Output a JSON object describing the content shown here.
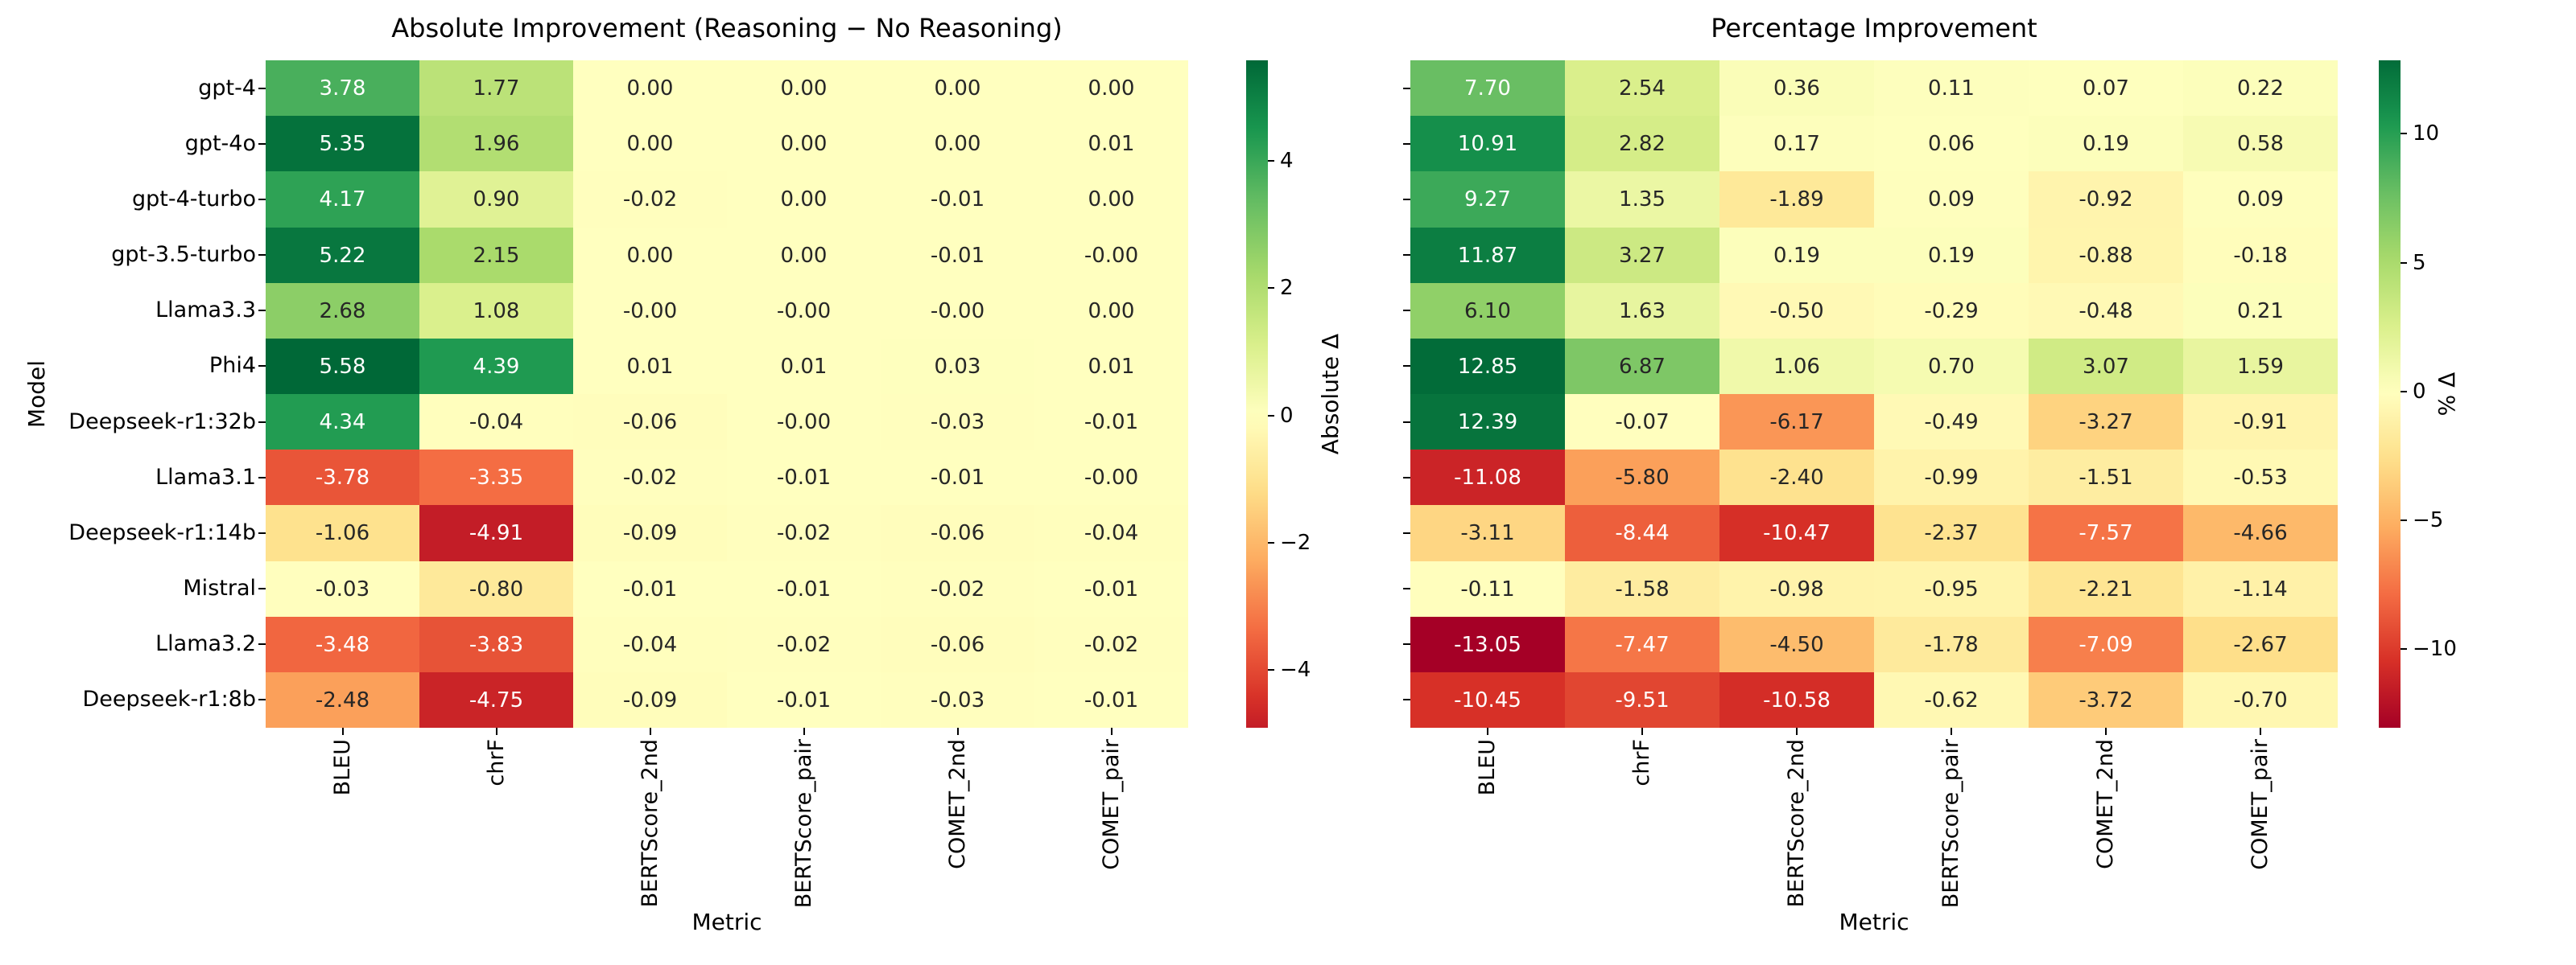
{
  "figure": {
    "background": "#ffffff",
    "colormap": "RdYlGn",
    "colormap_stops": [
      "#a50026",
      "#d73027",
      "#f46d43",
      "#fdae61",
      "#fee08b",
      "#ffffbf",
      "#d9ef8b",
      "#a6d96a",
      "#66bd63",
      "#1a9850",
      "#006837"
    ]
  },
  "chart_data": [
    {
      "type": "heatmap",
      "title": "Absolute Improvement (Reasoning − No Reasoning)",
      "xlabel": "Metric",
      "ylabel": "Model",
      "x_categories": [
        "BLEU",
        "chrF",
        "BERTScore_2nd",
        "BERTScore_pair",
        "COMET_2nd",
        "COMET_pair"
      ],
      "y_categories": [
        "gpt-4",
        "gpt-4o",
        "gpt-4-turbo",
        "gpt-3.5-turbo",
        "Llama3.3",
        "Phi4",
        "Deepseek-r1:32b",
        "Llama3.1",
        "Deepseek-r1:14b",
        "Mistral",
        "Llama3.2",
        "Deepseek-r1:8b"
      ],
      "y_labels_visible": true,
      "cells": [
        [
          "3.78",
          "1.77",
          "0.00",
          "0.00",
          "0.00",
          "0.00"
        ],
        [
          "5.35",
          "1.96",
          "0.00",
          "0.00",
          "0.00",
          "0.01"
        ],
        [
          "4.17",
          "0.90",
          "-0.02",
          "0.00",
          "-0.01",
          "0.00"
        ],
        [
          "5.22",
          "2.15",
          "0.00",
          "0.00",
          "-0.01",
          "-0.00"
        ],
        [
          "2.68",
          "1.08",
          "-0.00",
          "-0.00",
          "-0.00",
          "0.00"
        ],
        [
          "5.58",
          "4.39",
          "0.01",
          "0.01",
          "0.03",
          "0.01"
        ],
        [
          "4.34",
          "-0.04",
          "-0.06",
          "-0.00",
          "-0.03",
          "-0.01"
        ],
        [
          "-3.78",
          "-3.35",
          "-0.02",
          "-0.01",
          "-0.01",
          "-0.00"
        ],
        [
          "-1.06",
          "-4.91",
          "-0.09",
          "-0.02",
          "-0.06",
          "-0.04"
        ],
        [
          "-0.03",
          "-0.80",
          "-0.01",
          "-0.01",
          "-0.02",
          "-0.01"
        ],
        [
          "-3.48",
          "-3.83",
          "-0.04",
          "-0.02",
          "-0.06",
          "-0.02"
        ],
        [
          "-2.48",
          "-4.75",
          "-0.09",
          "-0.01",
          "-0.03",
          "-0.01"
        ]
      ],
      "center": 0,
      "vmin": -4.91,
      "vmax": 5.58,
      "half_range": 5.58,
      "colorbar": {
        "label": "Absolute Δ",
        "ticks": [
          "4",
          "2",
          "0",
          "−2",
          "−4"
        ],
        "tick_values": [
          4,
          2,
          0,
          -2,
          -4
        ]
      }
    },
    {
      "type": "heatmap",
      "title": "Percentage Improvement",
      "xlabel": "Metric",
      "ylabel": "",
      "x_categories": [
        "BLEU",
        "chrF",
        "BERTScore_2nd",
        "BERTScore_pair",
        "COMET_2nd",
        "COMET_pair"
      ],
      "y_categories": [
        "gpt-4",
        "gpt-4o",
        "gpt-4-turbo",
        "gpt-3.5-turbo",
        "Llama3.3",
        "Phi4",
        "Deepseek-r1:32b",
        "Llama3.1",
        "Deepseek-r1:14b",
        "Mistral",
        "Llama3.2",
        "Deepseek-r1:8b"
      ],
      "y_labels_visible": false,
      "cells": [
        [
          "7.70",
          "2.54",
          "0.36",
          "0.11",
          "0.07",
          "0.22"
        ],
        [
          "10.91",
          "2.82",
          "0.17",
          "0.06",
          "0.19",
          "0.58"
        ],
        [
          "9.27",
          "1.35",
          "-1.89",
          "0.09",
          "-0.92",
          "0.09"
        ],
        [
          "11.87",
          "3.27",
          "0.19",
          "0.19",
          "-0.88",
          "-0.18"
        ],
        [
          "6.10",
          "1.63",
          "-0.50",
          "-0.29",
          "-0.48",
          "0.21"
        ],
        [
          "12.85",
          "6.87",
          "1.06",
          "0.70",
          "3.07",
          "1.59"
        ],
        [
          "12.39",
          "-0.07",
          "-6.17",
          "-0.49",
          "-3.27",
          "-0.91"
        ],
        [
          "-11.08",
          "-5.80",
          "-2.40",
          "-0.99",
          "-1.51",
          "-0.53"
        ],
        [
          "-3.11",
          "-8.44",
          "-10.47",
          "-2.37",
          "-7.57",
          "-4.66"
        ],
        [
          "-0.11",
          "-1.58",
          "-0.98",
          "-0.95",
          "-2.21",
          "-1.14"
        ],
        [
          "-13.05",
          "-7.47",
          "-4.50",
          "-1.78",
          "-7.09",
          "-2.67"
        ],
        [
          "-10.45",
          "-9.51",
          "-10.58",
          "-0.62",
          "-3.72",
          "-0.70"
        ]
      ],
      "center": 0,
      "vmin": -13.05,
      "vmax": 12.85,
      "half_range": 13.05,
      "colorbar": {
        "label": "% Δ",
        "ticks": [
          "10",
          "5",
          "0",
          "−5",
          "−10"
        ],
        "tick_values": [
          10,
          5,
          0,
          -5,
          -10
        ]
      }
    }
  ]
}
